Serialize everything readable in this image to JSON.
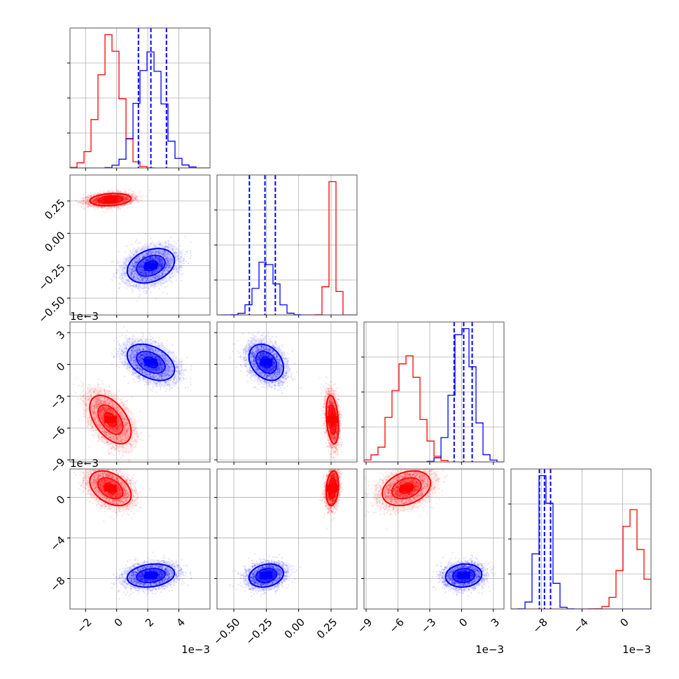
{
  "chart_data": {
    "type": "corner",
    "params": 4,
    "grid": true,
    "series": [
      {
        "name": "",
        "color": "#ff0000",
        "means": [
          -0.0004,
          0.26,
          -0.0052,
          0.0009
        ],
        "sds": [
          0.0007,
          0.025,
          0.0012,
          0.0009
        ],
        "corr": [
          [
            1,
            0.2,
            -0.5,
            -0.4
          ],
          [
            0.2,
            1,
            -0.3,
            0.2
          ],
          [
            -0.5,
            -0.3,
            1,
            0.3
          ],
          [
            -0.4,
            0.2,
            0.3,
            1
          ]
        ]
      },
      {
        "name": "",
        "color": "#0000ff",
        "means": [
          0.0022,
          -0.25,
          0.0002,
          -0.0077
        ],
        "sds": [
          0.0008,
          0.07,
          0.0009,
          0.0006
        ],
        "corr": [
          [
            1,
            0.3,
            -0.4,
            0.2
          ],
          [
            0.3,
            1,
            -0.3,
            0.2
          ],
          [
            -0.4,
            -0.3,
            1,
            0.1
          ],
          [
            0.2,
            0.2,
            0.1,
            1
          ]
        ],
        "quantiles": [
          [
            0.0014,
            0.0022,
            0.0032
          ],
          [
            -0.38,
            -0.26,
            -0.18
          ],
          [
            -0.0007,
            0.0002,
            0.001
          ],
          [
            -0.0082,
            -0.0077,
            -0.0071
          ]
        ]
      }
    ],
    "axes": [
      {
        "range": [
          -0.003,
          0.006
        ],
        "ticks": [
          -0.002,
          0,
          0.002,
          0.004
        ],
        "tick_labels": [
          "−2",
          "0",
          "2",
          "4"
        ],
        "offset_label": "1e−3"
      },
      {
        "range": [
          -0.63,
          0.45
        ],
        "ticks": [
          -0.5,
          -0.25,
          0,
          0.25
        ],
        "tick_labels": [
          "−0.50",
          "−0.25",
          "0.00",
          "0.25"
        ],
        "offset_label": ""
      },
      {
        "range": [
          -0.0092,
          0.004
        ],
        "ticks": [
          -0.009,
          -0.006,
          -0.003,
          0,
          0.003
        ],
        "tick_labels": [
          "−9",
          "−6",
          "−3",
          "0",
          "3"
        ],
        "offset_label": "1e−3"
      },
      {
        "range": [
          -0.011,
          0.0028
        ],
        "ticks": [
          -0.008,
          -0.004,
          0
        ],
        "tick_labels": [
          "−8",
          "−4",
          "0"
        ],
        "offset_label": "1e−3"
      }
    ],
    "row_offset_labels": [
      "",
      "1e−3",
      "1e−3"
    ],
    "bins": 20,
    "contour_levels": [
      0.39,
      0.86,
      0.99
    ]
  }
}
